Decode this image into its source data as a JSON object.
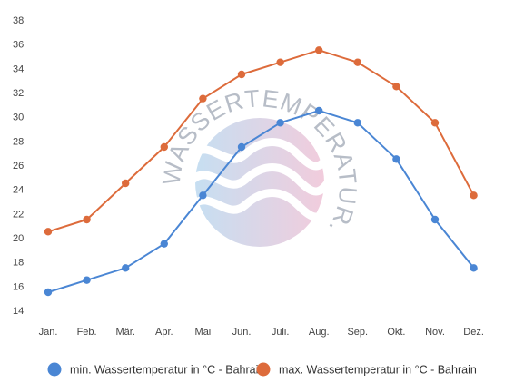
{
  "chart_data": {
    "type": "line",
    "categories": [
      "Jan.",
      "Feb.",
      "Mär.",
      "Apr.",
      "Mai",
      "Jun.",
      "Juli.",
      "Aug.",
      "Sep.",
      "Okt.",
      "Nov.",
      "Dez."
    ],
    "y_ticks": [
      14,
      16,
      18,
      20,
      22,
      24,
      26,
      28,
      30,
      32,
      34,
      36,
      38
    ],
    "ylim": [
      14,
      38
    ],
    "grid": false,
    "legend_position": "bottom",
    "series": [
      {
        "name": "min. Wassertemperatur in °C - Bahrain",
        "color": "#4a86d4",
        "values": [
          15.5,
          16.5,
          17.5,
          19.5,
          23.5,
          27.5,
          29.5,
          30.5,
          29.5,
          26.5,
          21.5,
          17.5
        ]
      },
      {
        "name": "max. Wassertemperatur in °C - Bahrain",
        "color": "#dd6b3b",
        "values": [
          20.5,
          21.5,
          24.5,
          27.5,
          31.5,
          33.5,
          34.5,
          35.5,
          34.5,
          32.5,
          29.5,
          23.5
        ]
      }
    ]
  },
  "watermark": {
    "text": "WASSERTEMPERATUR.ORG"
  }
}
